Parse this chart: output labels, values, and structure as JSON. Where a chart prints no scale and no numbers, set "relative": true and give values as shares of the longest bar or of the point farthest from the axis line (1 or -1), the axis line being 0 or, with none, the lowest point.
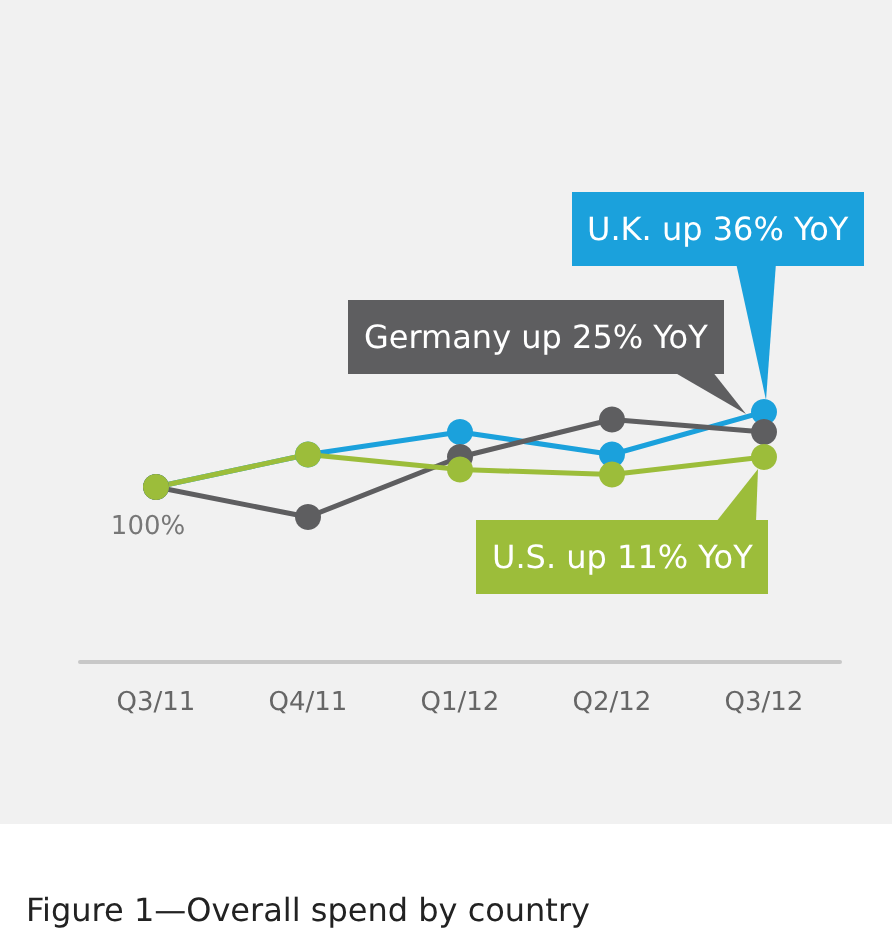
{
  "chart_data": {
    "type": "line",
    "relative": true,
    "title": "Figure 1—Overall spend by country",
    "categories": [
      "Q3/11",
      "Q4/11",
      "Q1/12",
      "Q2/12",
      "Q3/12"
    ],
    "series": [
      {
        "color": "#1ba1dc",
        "values": [
          0.7,
          0.83,
          0.92,
          0.83,
          1
        ]
      },
      {
        "color": "#5e5e60",
        "values": [
          0.7,
          0.58,
          0.82,
          0.97,
          0.92
        ]
      },
      {
        "color": "#9cbd3a",
        "values": [
          0.7,
          0.83,
          0.77,
          0.75,
          0.82
        ]
      }
    ],
    "annotations": [
      {
        "text": "U.K. up 36% YoY",
        "x": "Q3/12",
        "y": 1
      },
      {
        "text": "Germany up 25% YoY",
        "x": "Q3/12",
        "y": 0.92
      },
      {
        "text": "U.S. up 11% YoY",
        "x": "Q3/12",
        "y": 0.82
      },
      {
        "text": "100%",
        "x": "Q3/11",
        "y": 0.7
      }
    ],
    "marker": "circle",
    "grid": false
  }
}
